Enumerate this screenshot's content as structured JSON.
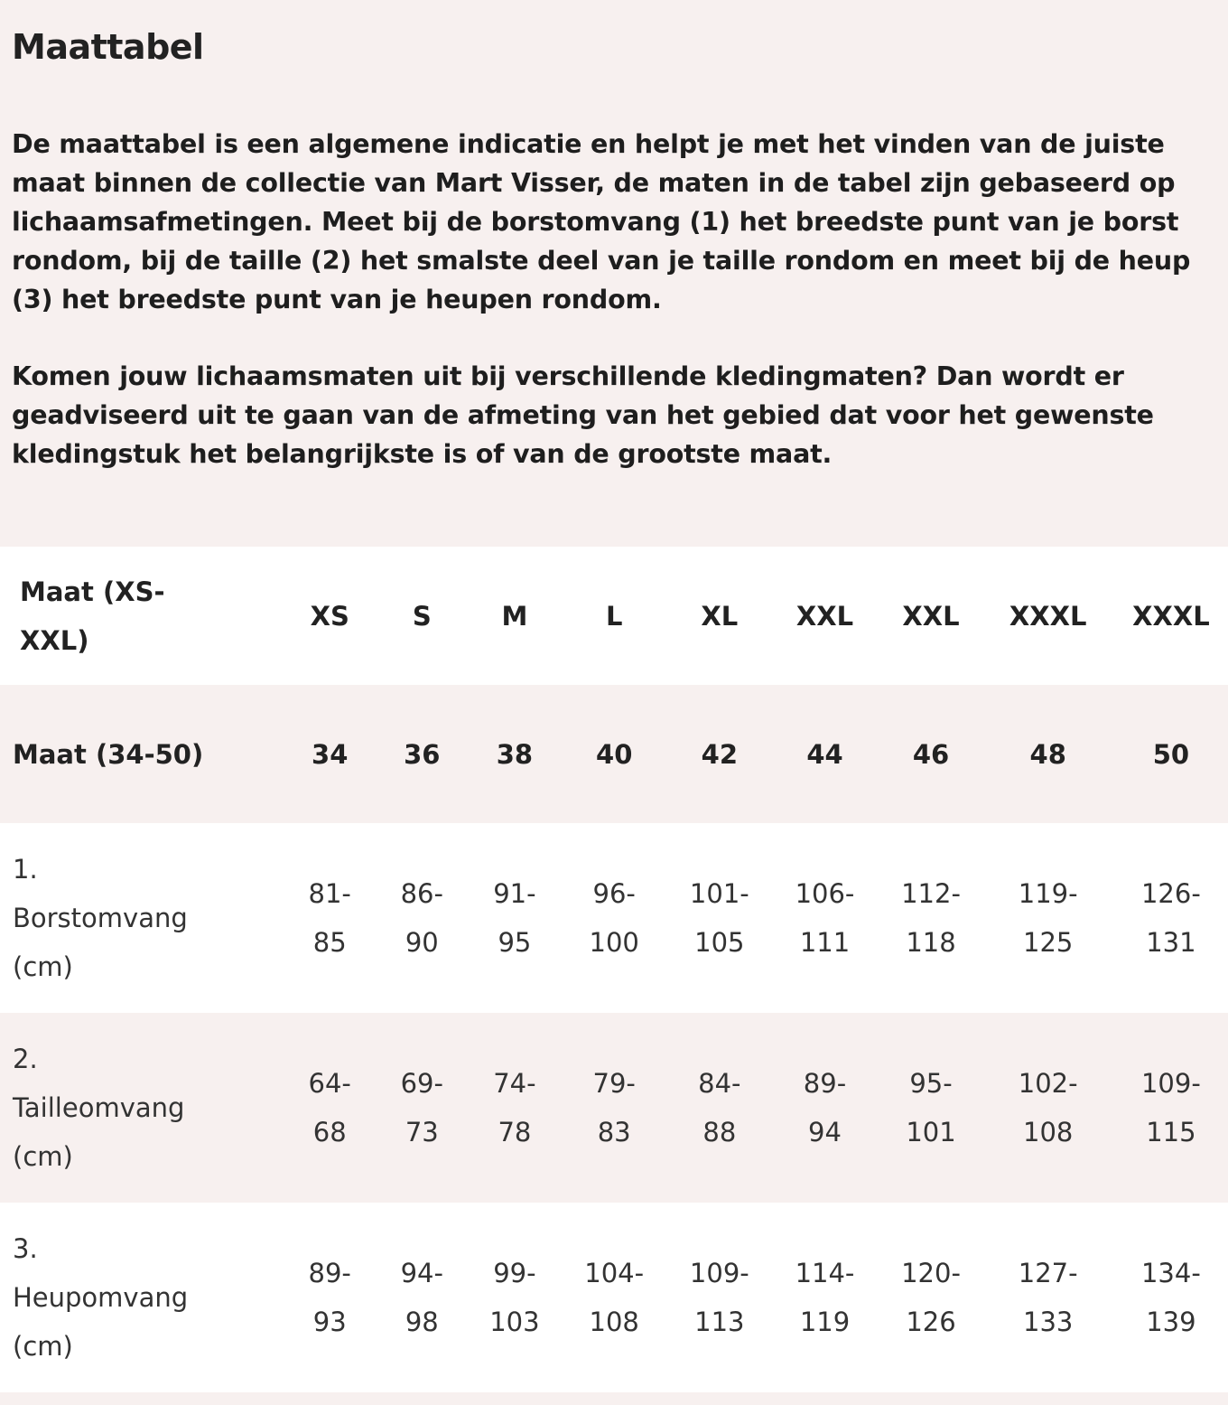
{
  "title": "Maattabel",
  "paragraphs": [
    "De maattabel is een algemene indicatie en helpt je met het vinden van de juiste maat binnen de collectie van Mart Visser, de maten in de tabel zijn gebaseerd op lichaamsafmetingen. Meet bij de borstomvang (1) het breedste punt van je borst rondom, bij de taille (2) het smalste deel van je taille rondom en meet bij de heup (3) het breedste punt van je heupen rondom.",
    "Komen jouw lichaamsmaten uit bij verschillende kledingmaten? Dan wordt er geadviseerd uit te gaan van de afmeting van het gebied dat voor het gewenste kledingstuk het belangrijkste is of van de grootste maat."
  ],
  "colors": {
    "background": "#f7f0ef",
    "row_alt": "#ffffff",
    "text": "#222222"
  },
  "table": {
    "rows": [
      {
        "label": "Maat (XS-XXL)",
        "cells": [
          "XS",
          "S",
          "M",
          "L",
          "XL",
          "XXL",
          "XXL",
          "XXXL",
          "XXXL"
        ]
      },
      {
        "label": "Maat (34-50)",
        "cells": [
          "34",
          "36",
          "38",
          "40",
          "42",
          "44",
          "46",
          "48",
          "50"
        ]
      },
      {
        "label": "1. Borstomvang (cm)",
        "cells": [
          "81-85",
          "86-90",
          "91-95",
          "96-100",
          "101-105",
          "106-111",
          "112-118",
          "119-125",
          "126-131"
        ]
      },
      {
        "label": "2. Tailleomvang (cm)",
        "cells": [
          "64-68",
          "69-73",
          "74-78",
          "79-83",
          "84-88",
          "89-94",
          "95-101",
          "102-108",
          "109-115"
        ]
      },
      {
        "label": "3. Heupomvang (cm)",
        "cells": [
          "89-93",
          "94-98",
          "99-103",
          "104-108",
          "109-113",
          "114-119",
          "120-126",
          "127-133",
          "134-139"
        ]
      }
    ]
  }
}
